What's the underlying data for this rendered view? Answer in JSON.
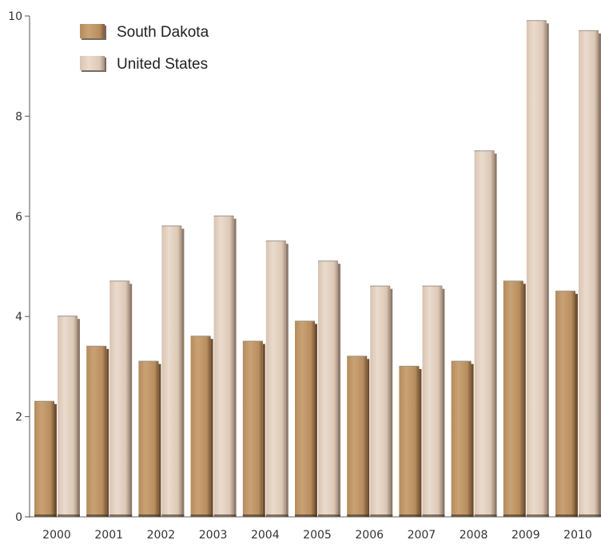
{
  "chart_data": {
    "type": "bar",
    "title": "",
    "xlabel": "",
    "ylabel": "",
    "ylim": [
      0,
      10
    ],
    "yticks": [
      0,
      2,
      4,
      6,
      8,
      10
    ],
    "categories": [
      "2000",
      "2001",
      "2002",
      "2003",
      "2004",
      "2005",
      "2006",
      "2007",
      "2008",
      "2009",
      "2010"
    ],
    "series": [
      {
        "name": "South Dakota",
        "values": [
          2.3,
          3.4,
          3.1,
          3.6,
          3.5,
          3.9,
          3.2,
          3.0,
          3.1,
          4.7,
          4.5
        ],
        "color": "#c29a6c"
      },
      {
        "name": "United States",
        "values": [
          4.0,
          4.7,
          5.8,
          6.0,
          5.5,
          5.1,
          4.6,
          4.6,
          7.3,
          9.9,
          9.7
        ],
        "color": "#e3cfbf"
      }
    ],
    "legend_position": "top-left",
    "grid": false
  }
}
